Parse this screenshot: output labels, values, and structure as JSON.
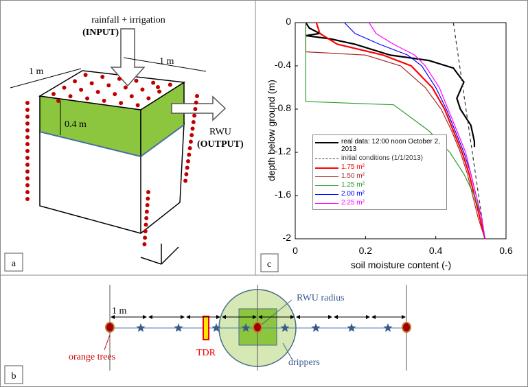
{
  "panel_a": {
    "label": "a",
    "input_line1": "rainfall + irrigation",
    "input_line2": "(INPUT)",
    "width_left": "1 m",
    "width_right": "1 m",
    "depth": "0.4 m",
    "output_line1": "RWU",
    "output_line2": "(OUTPUT)"
  },
  "chart_data": {
    "type": "line",
    "panel_label": "c",
    "xlabel": "soil moisture content (-)",
    "ylabel": "depth below ground (m)",
    "xlim": [
      0,
      0.6
    ],
    "ylim": [
      -2,
      0
    ],
    "xticks": [
      0,
      0.2,
      0.4,
      0.6
    ],
    "yticks": [
      -2,
      -1.6,
      -1.2,
      -0.8,
      -0.4,
      0
    ],
    "series": [
      {
        "name": "real data: 12:00 noon October 2, 2013",
        "color": "#000000",
        "dashed": false,
        "x": [
          0.03,
          0.04,
          0.07,
          0.03,
          0.1,
          0.17,
          0.27,
          0.38,
          0.45,
          0.48,
          0.46,
          0.47,
          0.5,
          0.51,
          0.51
        ],
        "values": [
          0,
          -0.05,
          -0.1,
          -0.12,
          -0.15,
          -0.2,
          -0.3,
          -0.35,
          -0.42,
          -0.55,
          -0.7,
          -0.8,
          -0.95,
          -1.1,
          -1.15
        ]
      },
      {
        "name": "initial conditions (1/1/2013)",
        "color": "#333333",
        "dashed": true,
        "x": [
          0.45,
          0.54
        ],
        "values": [
          0,
          -2
        ]
      },
      {
        "name": "1.75 m²",
        "color": "#ff0000",
        "dashed": false,
        "x": [
          0.06,
          0.07,
          0.12,
          0.25,
          0.33,
          0.39,
          0.425,
          0.45,
          0.475,
          0.495,
          0.51,
          0.525,
          0.54
        ],
        "values": [
          0,
          -0.1,
          -0.2,
          -0.3,
          -0.4,
          -0.6,
          -0.8,
          -1,
          -1.2,
          -1.4,
          -1.6,
          -1.8,
          -2
        ]
      },
      {
        "name": "1.50 m²",
        "color": "#a52a2a",
        "dashed": false,
        "x": [
          0.03,
          0.03,
          0.2,
          0.3,
          0.37,
          0.415,
          0.445,
          0.47,
          0.49,
          0.505,
          0.52,
          0.54
        ],
        "values": [
          0,
          -0.27,
          -0.3,
          -0.4,
          -0.6,
          -0.8,
          -1,
          -1.2,
          -1.4,
          -1.6,
          -1.8,
          -2
        ]
      },
      {
        "name": "1.25 m²",
        "color": "#2a9a2a",
        "dashed": false,
        "x": [
          0.03,
          0.03,
          0.28,
          0.38,
          0.44,
          0.48,
          0.51,
          0.53,
          0.54
        ],
        "values": [
          0,
          -0.73,
          -0.76,
          -1,
          -1.2,
          -1.4,
          -1.6,
          -1.8,
          -2
        ]
      },
      {
        "name": "2.00 m²",
        "color": "#0000ff",
        "dashed": false,
        "x": [
          0.14,
          0.17,
          0.24,
          0.32,
          0.36,
          0.4,
          0.43,
          0.455,
          0.48,
          0.5,
          0.515,
          0.53,
          0.54
        ],
        "values": [
          0,
          -0.1,
          -0.2,
          -0.3,
          -0.4,
          -0.6,
          -0.8,
          -1,
          -1.2,
          -1.4,
          -1.6,
          -1.8,
          -2
        ]
      },
      {
        "name": "2.25 m²",
        "color": "#ff00ff",
        "dashed": false,
        "x": [
          0.21,
          0.23,
          0.28,
          0.34,
          0.37,
          0.41,
          0.435,
          0.46,
          0.485,
          0.5,
          0.515,
          0.53,
          0.54
        ],
        "values": [
          0,
          -0.1,
          -0.2,
          -0.3,
          -0.4,
          -0.6,
          -0.8,
          -1,
          -1.2,
          -1.4,
          -1.6,
          -1.8,
          -2
        ]
      }
    ]
  },
  "panel_b": {
    "label": "b",
    "spacing": "1 m",
    "rwu_radius": "RWU radius",
    "tdr": "TDR",
    "trees": "orange trees",
    "drippers": "drippers"
  }
}
